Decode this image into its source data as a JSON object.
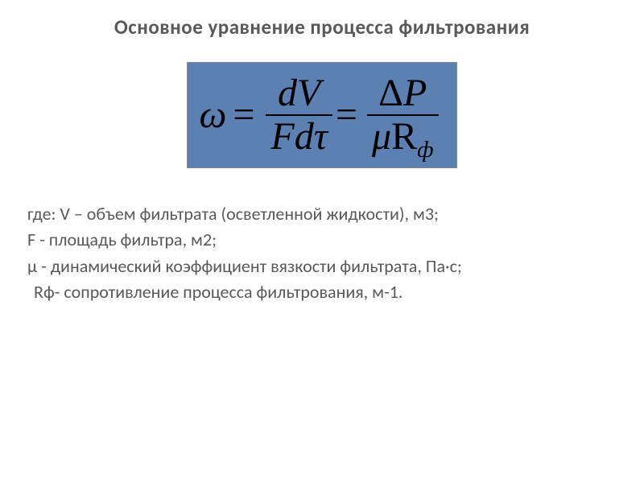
{
  "title": "Основное уравнение процесса фильтрования",
  "equation": {
    "lhs_symbol": "ω",
    "frac1": {
      "num": "dV",
      "den_left": "Fd",
      "den_tau": "τ"
    },
    "frac2": {
      "num_delta": "Δ",
      "num_var": "P",
      "den_mu": "μ",
      "den_R": "R",
      "den_sub": "ф"
    },
    "colors": {
      "background": "#5d80b3",
      "text": "#000000",
      "border": "#888888"
    },
    "fontsize": 48
  },
  "definitions": {
    "line1": "где: V – объем фильтрата (осветленной жидкости), м3;",
    "line2": "F -  площадь фильтра, м2;",
    "line3": "μ  - динамический коэффициент вязкости фильтрата, Па·с;",
    "line4": " Rф- сопротивление процесса фильтрования, м-1."
  },
  "style": {
    "body_text_color": "#595959",
    "title_fontsize": 25,
    "body_fontsize": 22
  }
}
